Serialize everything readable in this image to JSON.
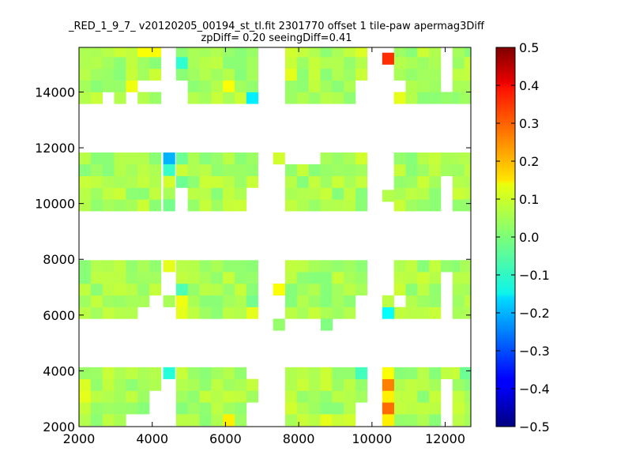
{
  "chart_data": {
    "type": "heatmap",
    "title": "_RED_1_9_7_ v20120205_00194_st_tl.fit 2301770 offset 1 tile-paw apermag3Diff",
    "subtitle": "zpDiff= 0.20 seeingDiff=0.41",
    "xlabel": "",
    "ylabel": "",
    "xlim": [
      2000,
      12700
    ],
    "ylim": [
      2000,
      15600
    ],
    "xticks": [
      2000,
      4000,
      6000,
      8000,
      10000,
      12000
    ],
    "xtick_labels": [
      "2000",
      "4000",
      "6000",
      "8000",
      "10000",
      "12000"
    ],
    "yticks": [
      2000,
      4000,
      6000,
      8000,
      10000,
      12000,
      14000
    ],
    "ytick_labels": [
      "2000",
      "4000",
      "6000",
      "8000",
      "10000",
      "12000",
      "14000"
    ],
    "colormap": "jet",
    "color_range": [
      -0.5,
      0.5
    ],
    "colorbar_ticks": [
      0.5,
      0.4,
      0.3,
      0.2,
      0.1,
      0.0,
      -0.1,
      -0.2,
      -0.3,
      -0.4,
      -0.5
    ],
    "colorbar_labels": [
      "0.5",
      "0.4",
      "0.3",
      "0.2",
      "0.1",
      "0.0",
      "−0.1",
      "−0.2",
      "−0.3",
      "−0.4",
      "−0.5"
    ],
    "grid": false,
    "cell_size": [
      320,
      420
    ],
    "x_starts": [
      2000,
      4650,
      7630,
      10600
    ],
    "cols": 7,
    "y_starts": [
      2030,
      5870,
      9730,
      13580
    ],
    "rows": 5,
    "base_value": 0.04,
    "extra_cells": [
      {
        "x": 10280,
        "y": 2030,
        "v": 0.14
      },
      {
        "x": 10280,
        "y": 2450,
        "v": 0.27
      },
      {
        "x": 10280,
        "y": 2870,
        "v": 0.14
      },
      {
        "x": 10280,
        "y": 3290,
        "v": 0.25
      },
      {
        "x": 10280,
        "y": 3710,
        "v": 0.12
      },
      {
        "x": 10280,
        "y": 5870,
        "v": -0.12
      },
      {
        "x": 10280,
        "y": 6290,
        "v": 0.06
      },
      {
        "x": 10280,
        "y": 10070,
        "v": 0.05
      },
      {
        "x": 10280,
        "y": 14990,
        "v": 0.33
      },
      {
        "x": 4300,
        "y": 3710,
        "v": -0.09
      },
      {
        "x": 4300,
        "y": 6290,
        "v": 0.04
      },
      {
        "x": 4300,
        "y": 7550,
        "v": 0.1
      },
      {
        "x": 4300,
        "y": 11410,
        "v": -0.2
      },
      {
        "x": 4300,
        "y": 10990,
        "v": -0.07
      },
      {
        "x": 4300,
        "y": 10570,
        "v": 0.08
      },
      {
        "x": 4300,
        "y": 10150,
        "v": 0.04
      },
      {
        "x": 4300,
        "y": 9730,
        "v": -0.01
      },
      {
        "x": 7300,
        "y": 11410,
        "v": 0.08
      },
      {
        "x": 7300,
        "y": 6710,
        "v": 0.12
      },
      {
        "x": 7300,
        "y": 5450,
        "v": 0.02
      },
      {
        "x": 12400,
        "y": 3710,
        "v": -0.02
      },
      {
        "x": 12400,
        "y": 7550,
        "v": 0.04
      },
      {
        "x": 12400,
        "y": 9730,
        "v": 0.02
      },
      {
        "x": 12400,
        "y": 11410,
        "v": 0.05
      },
      {
        "x": 12400,
        "y": 13580,
        "v": 0.03
      },
      {
        "x": 8600,
        "y": 5450,
        "v": 0.0
      },
      {
        "x": 2000,
        "y": 13580,
        "v": 0.05
      }
    ],
    "value_overrides": [
      {
        "x": 4650,
        "y": 14840,
        "v": -0.08
      },
      {
        "x": 4650,
        "y": 6710,
        "v": -0.05
      },
      {
        "x": 4650,
        "y": 11410,
        "v": -0.02
      },
      {
        "x": 4650,
        "y": 10570,
        "v": -0.02
      },
      {
        "x": 6570,
        "y": 13580,
        "v": -0.14
      },
      {
        "x": 6570,
        "y": 5870,
        "v": 0.1
      },
      {
        "x": 6570,
        "y": 6290,
        "v": -0.01
      },
      {
        "x": 5930,
        "y": 2030,
        "v": 0.14
      },
      {
        "x": 5930,
        "y": 14000,
        "v": 0.12
      },
      {
        "x": 4650,
        "y": 5870,
        "v": 0.1
      },
      {
        "x": 4650,
        "y": 6290,
        "v": 0.11
      },
      {
        "x": 10600,
        "y": 13580,
        "v": 0.1
      },
      {
        "x": 9550,
        "y": 14840,
        "v": 0.05
      },
      {
        "x": 9550,
        "y": 15260,
        "v": 0.09
      },
      {
        "x": 7630,
        "y": 15260,
        "v": 0.08
      },
      {
        "x": 7630,
        "y": 14420,
        "v": 0.1
      },
      {
        "x": 9550,
        "y": 3710,
        "v": -0.06
      },
      {
        "x": 9230,
        "y": 2030,
        "v": 0.08
      },
      {
        "x": 8590,
        "y": 2030,
        "v": 0.1
      },
      {
        "x": 7630,
        "y": 2450,
        "v": 0.08
      },
      {
        "x": 2000,
        "y": 2870,
        "v": 0.1
      },
      {
        "x": 2000,
        "y": 3290,
        "v": 0.09
      },
      {
        "x": 3920,
        "y": 15260,
        "v": 0.12
      },
      {
        "x": 3600,
        "y": 15260,
        "v": 0.12
      },
      {
        "x": 3280,
        "y": 14000,
        "v": 0.11
      },
      {
        "x": 3920,
        "y": 11410,
        "v": 0.01
      },
      {
        "x": 3280,
        "y": 11410,
        "v": 0.05
      },
      {
        "x": 9550,
        "y": 11410,
        "v": 0.08
      },
      {
        "x": 2960,
        "y": 13580,
        "v": 0.05
      },
      {
        "x": 3600,
        "y": 13580,
        "v": 0.05
      }
    ],
    "blank_cells": [
      {
        "x": 3600,
        "y": 5870
      },
      {
        "x": 3920,
        "y": 5870
      },
      {
        "x": 3920,
        "y": 6290
      },
      {
        "x": 3280,
        "y": 2030
      },
      {
        "x": 3600,
        "y": 2030
      },
      {
        "x": 3920,
        "y": 2030
      },
      {
        "x": 3920,
        "y": 2450
      },
      {
        "x": 3920,
        "y": 2870
      },
      {
        "x": 3600,
        "y": 14000
      },
      {
        "x": 3920,
        "y": 14000
      },
      {
        "x": 2640,
        "y": 13580
      },
      {
        "x": 3280,
        "y": 13580
      },
      {
        "x": 4650,
        "y": 13580
      },
      {
        "x": 4650,
        "y": 14000
      },
      {
        "x": 4650,
        "y": 10150
      },
      {
        "x": 4650,
        "y": 9730
      },
      {
        "x": 6570,
        "y": 2450
      },
      {
        "x": 6570,
        "y": 2030
      },
      {
        "x": 6570,
        "y": 3710
      },
      {
        "x": 6570,
        "y": 10150
      },
      {
        "x": 6570,
        "y": 9730
      },
      {
        "x": 9550,
        "y": 14000
      },
      {
        "x": 9550,
        "y": 13580
      },
      {
        "x": 9550,
        "y": 5870
      },
      {
        "x": 9550,
        "y": 6290
      },
      {
        "x": 9550,
        "y": 2030
      },
      {
        "x": 9550,
        "y": 2450
      },
      {
        "x": 7630,
        "y": 11410
      },
      {
        "x": 7950,
        "y": 11410
      },
      {
        "x": 8270,
        "y": 11410
      },
      {
        "x": 10600,
        "y": 6290
      },
      {
        "x": 10600,
        "y": 14000
      },
      {
        "x": 11880,
        "y": 5870
      },
      {
        "x": 11880,
        "y": 6290
      },
      {
        "x": 11880,
        "y": 6710
      },
      {
        "x": 11880,
        "y": 7130
      },
      {
        "x": 11880,
        "y": 2030
      },
      {
        "x": 11880,
        "y": 2450
      },
      {
        "x": 11880,
        "y": 2870
      },
      {
        "x": 11880,
        "y": 3290
      },
      {
        "x": 11880,
        "y": 9730
      },
      {
        "x": 11880,
        "y": 10150
      },
      {
        "x": 11880,
        "y": 10570
      },
      {
        "x": 11880,
        "y": 14000
      },
      {
        "x": 11880,
        "y": 14420
      },
      {
        "x": 11880,
        "y": 14840
      },
      {
        "x": 11880,
        "y": 15260
      }
    ],
    "seed": 11
  }
}
